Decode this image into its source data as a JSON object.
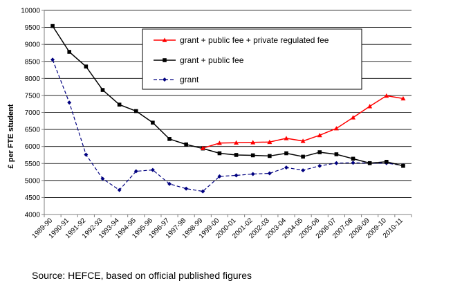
{
  "chart_data": {
    "type": "line",
    "categories": [
      "1989-90",
      "1990-91",
      "1991-92",
      "1992-93",
      "1993-94",
      "1994-95",
      "1995-96",
      "1996-97",
      "1997-98",
      "1998-99",
      "1999-00",
      "2000-01",
      "2001-02",
      "2002-03",
      "2003-04",
      "2004-05",
      "2005-06",
      "2006-07",
      "2007-08",
      "2008-09",
      "2009-10",
      "2010-11"
    ],
    "ylabel": "£ per FTE student",
    "xlabel": "",
    "ylim": [
      4000,
      10000
    ],
    "yticks": [
      4000,
      4500,
      5000,
      5500,
      6000,
      6500,
      7000,
      7500,
      8000,
      8500,
      9000,
      9500,
      10000
    ],
    "grid": "horizontal",
    "legend_position": "top-center",
    "series": [
      {
        "name": "grant + public fee + private regulated fee",
        "color": "#ff0000",
        "marker": "triangle",
        "style": "solid",
        "values": [
          null,
          null,
          null,
          null,
          null,
          null,
          null,
          null,
          null,
          5950,
          6100,
          6110,
          6120,
          6130,
          6240,
          6160,
          6330,
          6530,
          6850,
          7180,
          7490,
          7410
        ]
      },
      {
        "name": "grant + public fee",
        "color": "#000000",
        "marker": "square",
        "style": "solid",
        "values": [
          9540,
          8780,
          8350,
          7660,
          7230,
          7040,
          6700,
          6220,
          6060,
          5940,
          5800,
          5750,
          5740,
          5720,
          5800,
          5700,
          5830,
          5770,
          5640,
          5510,
          5550,
          5430
        ]
      },
      {
        "name": "grant",
        "color": "#000080",
        "marker": "diamond",
        "style": "dashed",
        "values": [
          8550,
          7290,
          5760,
          5050,
          4720,
          5270,
          5310,
          4900,
          4760,
          4680,
          5120,
          5150,
          5190,
          5210,
          5380,
          5300,
          5430,
          5510,
          5520,
          5510,
          5510,
          5440
        ]
      }
    ]
  },
  "footer": {
    "source": "Source: HEFCE, based on official published figures"
  }
}
